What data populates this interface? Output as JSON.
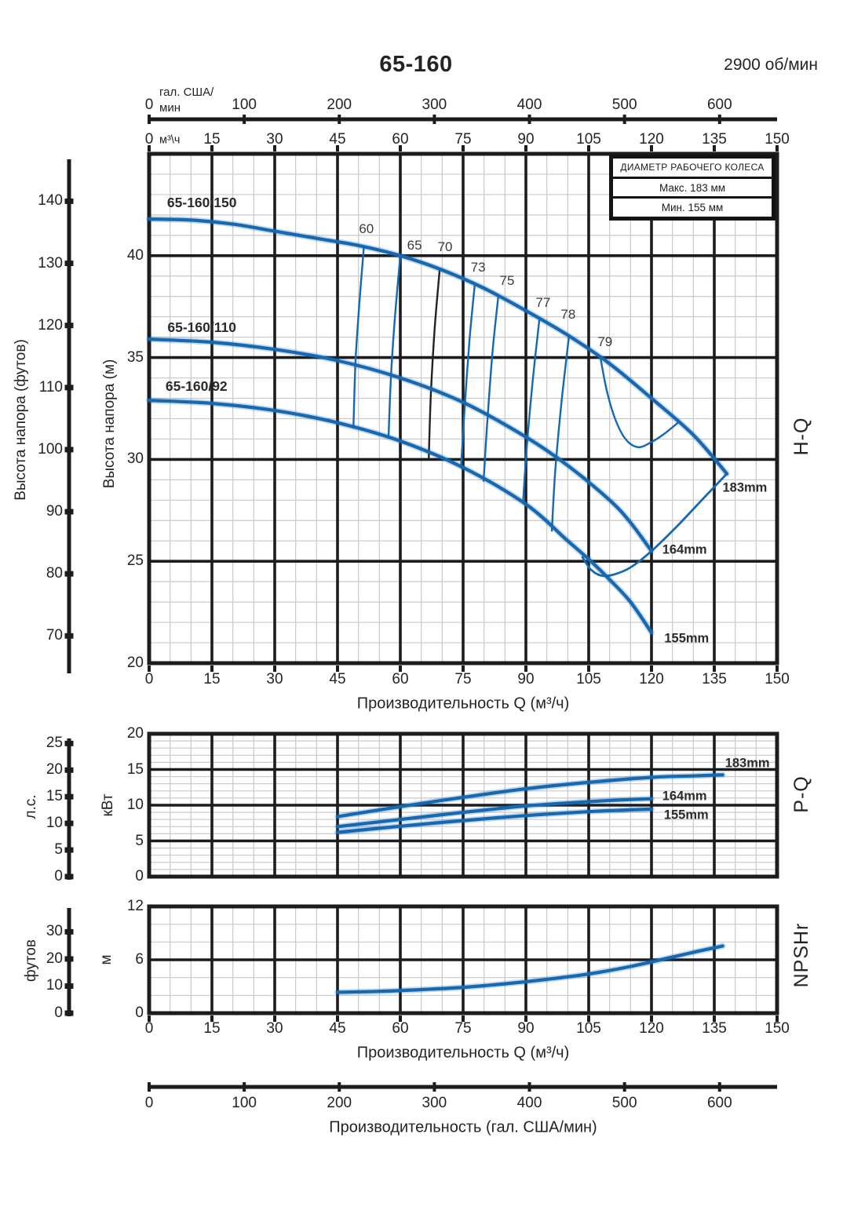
{
  "header": {
    "title": "65-160",
    "speed": "2900 об/мин"
  },
  "legend": {
    "title": "ДИАМЕТР РАБОЧЕГО КОЛЕСА",
    "max": "Макс. 183 мм",
    "min": "Мин. 155 мм"
  },
  "axis_titles": {
    "flow_m3h": "Производительность Q (м³/ч)",
    "flow_gal": "Производительность (гал. США/мин)",
    "head_ft": "Высота напора (футов)",
    "head_m": "Высота напора (м)",
    "power_hp": "л.с.",
    "power_kw": "кВт",
    "npsh_ft": "футов",
    "npsh_m": "м",
    "gal_line1": "гал. США/",
    "gal_line2": "мин",
    "m3h_unit": "м³\\ч"
  },
  "right_labels": {
    "hq": "H-Q",
    "pq": "P-Q",
    "npsh": "NPSHr"
  },
  "colors": {
    "curve": "#1668b0",
    "black": "#1c1c1e",
    "minor_grid": "#c9c9ce"
  },
  "chart_data": {
    "title": "65-160",
    "speed_rpm": 2900,
    "gal_axis": {
      "ticks": [
        0,
        100,
        200,
        300,
        400,
        500,
        600
      ],
      "max_gal": 660.43
    },
    "charts": [
      {
        "id": "hq",
        "type": "line",
        "right_label": "H-Q",
        "x": {
          "min": 0,
          "max": 150,
          "major": 15,
          "minor": 5,
          "ticks": [
            0,
            15,
            30,
            45,
            60,
            75,
            90,
            105,
            120,
            135,
            150
          ]
        },
        "y": {
          "min": 20,
          "max": 45,
          "major": 5,
          "minor": 1,
          "unit": "м",
          "ticks": [
            20,
            25,
            30,
            35,
            40
          ]
        },
        "y2": {
          "unit": "футов",
          "ticks": [
            70,
            80,
            90,
            100,
            110,
            120,
            130,
            140
          ]
        },
        "series": [
          {
            "name": "65-160/150",
            "diameter": "183mm",
            "points": [
              [
                0,
                41.8
              ],
              [
                10,
                41.75
              ],
              [
                20,
                41.55
              ],
              [
                30,
                41.2
              ],
              [
                40,
                40.85
              ],
              [
                50,
                40.5
              ],
              [
                60,
                40.0
              ],
              [
                70,
                39.3
              ],
              [
                80,
                38.4
              ],
              [
                90,
                37.3
              ],
              [
                100,
                36.1
              ],
              [
                110,
                34.7
              ],
              [
                120,
                33.0
              ],
              [
                130,
                31.2
              ],
              [
                138,
                29.3
              ]
            ]
          },
          {
            "name": "65-160/110",
            "diameter": "164mm",
            "points": [
              [
                0,
                35.9
              ],
              [
                15,
                35.75
              ],
              [
                30,
                35.4
              ],
              [
                45,
                34.85
              ],
              [
                60,
                34.0
              ],
              [
                75,
                32.8
              ],
              [
                90,
                31.1
              ],
              [
                100,
                29.7
              ],
              [
                110,
                28.0
              ],
              [
                115,
                26.9
              ],
              [
                120,
                25.5
              ]
            ]
          },
          {
            "name": "65-160/92",
            "diameter": "155mm",
            "points": [
              [
                0,
                32.9
              ],
              [
                15,
                32.75
              ],
              [
                30,
                32.4
              ],
              [
                45,
                31.8
              ],
              [
                60,
                30.9
              ],
              [
                75,
                29.6
              ],
              [
                90,
                27.8
              ],
              [
                100,
                26.0
              ],
              [
                105,
                25.1
              ],
              [
                110,
                24.1
              ],
              [
                115,
                23.0
              ],
              [
                120,
                21.5
              ]
            ]
          }
        ],
        "efficiency_lines": [
          {
            "label": "60",
            "points": [
              [
                51.3,
                40.45
              ],
              [
                50.2,
                37.6
              ],
              [
                49.3,
                34.8
              ],
              [
                48.8,
                31.55
              ]
            ]
          },
          {
            "label": "65",
            "points": [
              [
                60,
                40.0
              ],
              [
                58.8,
                37.2
              ],
              [
                57.8,
                34.2
              ],
              [
                57.2,
                31.2
              ]
            ]
          },
          {
            "label": "70",
            "color": "#222224",
            "points": [
              [
                69.4,
                39.3
              ],
              [
                68.2,
                36.4
              ],
              [
                67.3,
                33.2
              ],
              [
                66.8,
                30.1
              ]
            ]
          },
          {
            "label": "73",
            "points": [
              [
                77.8,
                38.6
              ],
              [
                76.5,
                35.8
              ],
              [
                75.3,
                32.3
              ],
              [
                74.5,
                29.6
              ]
            ]
          },
          {
            "label": "75",
            "points": [
              [
                83.4,
                38.0
              ],
              [
                82,
                35.2
              ],
              [
                80.7,
                31.6
              ],
              [
                79.9,
                28.95
              ]
            ]
          },
          {
            "label": "77",
            "points": [
              [
                93.2,
                36.85
              ],
              [
                91.6,
                33.8
              ],
              [
                90.2,
                30.6
              ],
              [
                89.3,
                27.85
              ]
            ]
          },
          {
            "label": "78",
            "points": [
              [
                100.3,
                36.05
              ],
              [
                98.5,
                32.8
              ],
              [
                97,
                29.4
              ],
              [
                96.2,
                26.5
              ]
            ]
          },
          {
            "label": "79",
            "points": [
              [
                107.8,
                35.0
              ],
              [
                109.3,
                33.4
              ],
              [
                111.3,
                32.0
              ],
              [
                113.8,
                31.0
              ],
              [
                116.8,
                30.6
              ],
              [
                120,
                30.85
              ],
              [
                123,
                31.25
              ],
              [
                126.3,
                31.8
              ]
            ]
          },
          {
            "label": "envelope",
            "points": [
              [
                138,
                29.3
              ],
              [
                132,
                28.0
              ],
              [
                126,
                26.7
              ],
              [
                120,
                25.5
              ],
              [
                115,
                24.7
              ],
              [
                111,
                24.35
              ],
              [
                108,
                24.3
              ],
              [
                105.5,
                24.6
              ],
              [
                103.5,
                25.2
              ]
            ]
          }
        ],
        "labels": [
          {
            "text": "65-160/150",
            "q": 12.6,
            "v": 42.6,
            "cls": "sname"
          },
          {
            "text": "65-160/110",
            "q": 12.6,
            "v": 36.5,
            "cls": "sname"
          },
          {
            "text": "65-160/92",
            "q": 11.3,
            "v": 33.6,
            "cls": "sname"
          },
          {
            "text": "183mm",
            "q": 142.3,
            "v": 28.6,
            "cls": "dmm"
          },
          {
            "text": "164mm",
            "q": 127.9,
            "v": 25.55,
            "cls": "dmm"
          },
          {
            "text": "155mm",
            "q": 128.4,
            "v": 21.2,
            "cls": "dmm"
          },
          {
            "text": "60",
            "q": 51.9,
            "v": 41.3,
            "cls": "eff"
          },
          {
            "text": "65",
            "q": 63.4,
            "v": 40.5,
            "cls": "eff"
          },
          {
            "text": "70",
            "q": 70.7,
            "v": 40.4,
            "cls": "eff"
          },
          {
            "text": "73",
            "q": 78.6,
            "v": 39.4,
            "cls": "eff"
          },
          {
            "text": "75",
            "q": 85.5,
            "v": 38.75,
            "cls": "eff"
          },
          {
            "text": "77",
            "q": 94.1,
            "v": 37.7,
            "cls": "eff"
          },
          {
            "text": "78",
            "q": 100.1,
            "v": 37.1,
            "cls": "eff"
          },
          {
            "text": "79",
            "q": 108.9,
            "v": 35.75,
            "cls": "eff"
          }
        ]
      },
      {
        "id": "pq",
        "type": "line",
        "right_label": "P-Q",
        "x": {
          "min": 0,
          "max": 150,
          "major": 15,
          "minor": 5,
          "ticks": []
        },
        "y": {
          "min": 0,
          "max": 20,
          "major": 5,
          "minor": 1,
          "unit": "кВт",
          "ticks": [
            0,
            5,
            10,
            15,
            20
          ]
        },
        "y2": {
          "unit": "л.с.",
          "ticks": [
            0,
            5,
            10,
            15,
            20,
            25
          ]
        },
        "series": [
          {
            "name": "183mm",
            "points": [
              [
                45,
                8.4
              ],
              [
                60,
                9.8
              ],
              [
                75,
                11.1
              ],
              [
                90,
                12.3
              ],
              [
                105,
                13.2
              ],
              [
                120,
                13.9
              ],
              [
                130,
                14.1
              ],
              [
                137,
                14.25
              ]
            ]
          },
          {
            "name": "164mm",
            "points": [
              [
                45,
                7.0
              ],
              [
                60,
                8.0
              ],
              [
                75,
                9.0
              ],
              [
                90,
                9.9
              ],
              [
                105,
                10.5
              ],
              [
                113,
                10.75
              ],
              [
                120,
                10.9
              ]
            ]
          },
          {
            "name": "155mm",
            "points": [
              [
                45,
                6.2
              ],
              [
                60,
                7.05
              ],
              [
                75,
                7.85
              ],
              [
                90,
                8.55
              ],
              [
                105,
                9.1
              ],
              [
                113,
                9.3
              ],
              [
                120,
                9.45
              ]
            ]
          }
        ],
        "labels": [
          {
            "text": "183mm",
            "q": 142.9,
            "v": 15.8,
            "cls": "dmm"
          },
          {
            "text": "164mm",
            "q": 127.9,
            "v": 11.2,
            "cls": "dmm"
          },
          {
            "text": "155mm",
            "q": 128.3,
            "v": 8.55,
            "cls": "dmm"
          }
        ]
      },
      {
        "id": "npsh",
        "type": "line",
        "right_label": "NPSHr",
        "x": {
          "min": 0,
          "max": 150,
          "major": 15,
          "minor": 5,
          "ticks": [
            0,
            15,
            30,
            45,
            60,
            75,
            90,
            105,
            120,
            135,
            150
          ]
        },
        "y": {
          "min": 0,
          "max": 12,
          "major": 6,
          "minor": 2,
          "unit": "м",
          "ticks": [
            0,
            6,
            12
          ]
        },
        "y2": {
          "unit": "футов",
          "ticks": [
            0,
            10,
            20,
            30
          ]
        },
        "series": [
          {
            "name": "NPSHr",
            "points": [
              [
                45,
                2.35
              ],
              [
                55,
                2.45
              ],
              [
                65,
                2.65
              ],
              [
                75,
                2.9
              ],
              [
                85,
                3.3
              ],
              [
                95,
                3.8
              ],
              [
                105,
                4.4
              ],
              [
                115,
                5.25
              ],
              [
                125,
                6.3
              ],
              [
                131,
                6.95
              ],
              [
                137,
                7.55
              ]
            ]
          }
        ],
        "labels": []
      }
    ]
  }
}
